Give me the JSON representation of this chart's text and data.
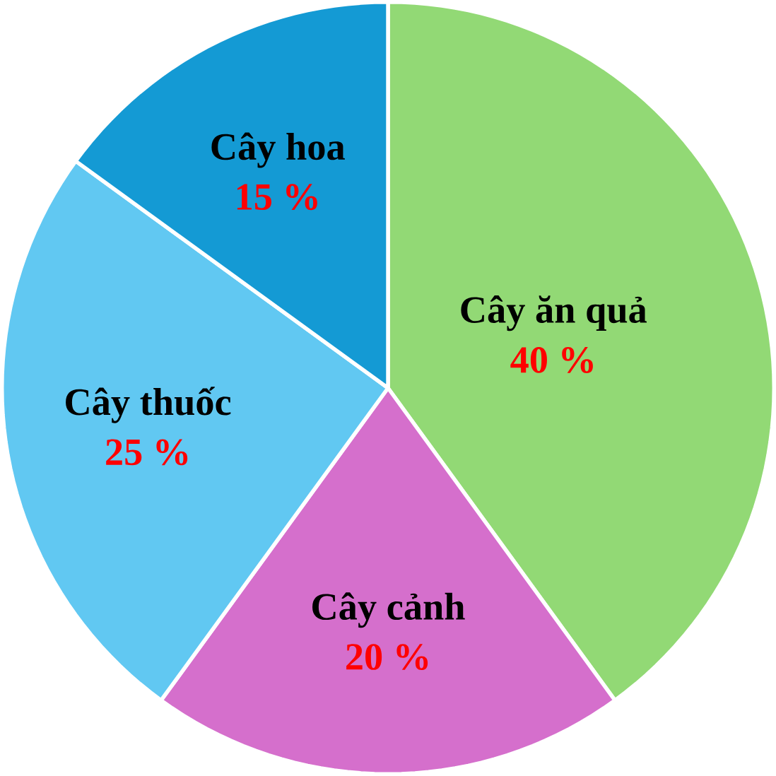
{
  "chart_data": {
    "type": "pie",
    "categories": [
      "Cây ăn quả",
      "Cây cảnh",
      "Cây thuốc",
      "Cây hoa"
    ],
    "values": [
      40,
      20,
      25,
      15
    ],
    "value_labels": [
      "40 %",
      "20 %",
      "25 %",
      "15 %"
    ],
    "colors": [
      "#92d975",
      "#d56fcc",
      "#61c8f2",
      "#149ad4"
    ]
  }
}
